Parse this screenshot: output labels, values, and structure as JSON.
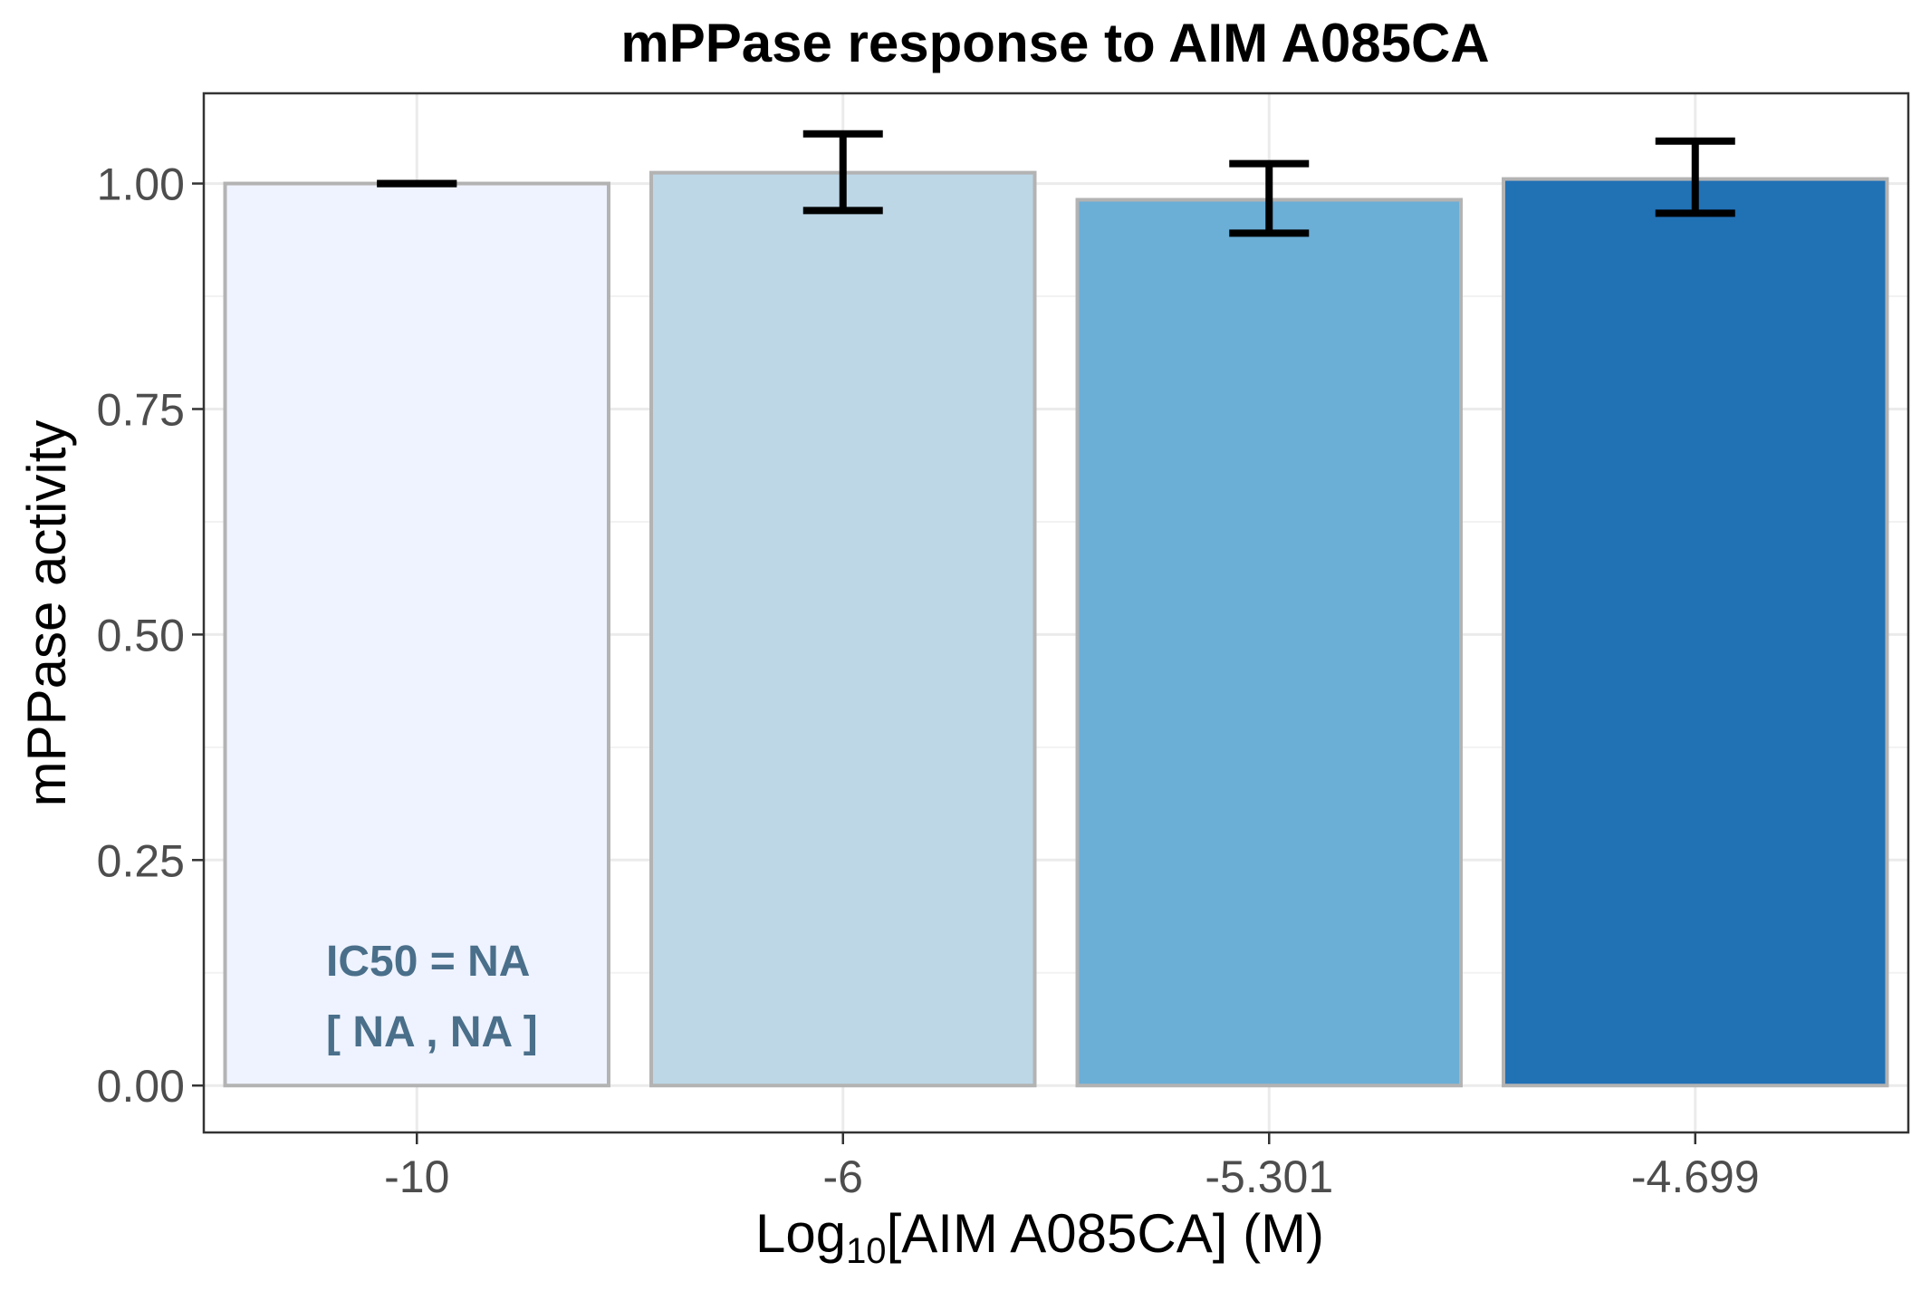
{
  "chart_data": {
    "type": "bar",
    "title": "mPPase response to AIM A085CA",
    "xlabel": {
      "prefix": "Log",
      "subscript": "10",
      "suffix": "[AIM A085CA] (M)"
    },
    "ylabel": "mPPase activity",
    "categories": [
      "-10",
      "-6",
      "-5.301",
      "-4.699"
    ],
    "values": [
      1.0,
      1.012,
      0.982,
      1.005
    ],
    "error_low": [
      1.0,
      0.97,
      0.945,
      0.967
    ],
    "error_high": [
      1.0,
      1.055,
      1.022,
      1.047
    ],
    "bar_colors": [
      "#eff3ff",
      "#bdd7e7",
      "#6baed6",
      "#2171b5"
    ],
    "bar_stroke": "#b3b3b3",
    "ylim": [
      -0.052,
      1.1
    ],
    "yticks": [
      0.0,
      0.25,
      0.5,
      0.75,
      1.0
    ],
    "ytick_labels": [
      "0.00",
      "0.25",
      "0.50",
      "0.75",
      "1.00"
    ],
    "grid": true,
    "annotations": [
      "IC50 = NA",
      "[ NA , NA ]"
    ],
    "annotation_color": "#4a6f8a"
  }
}
